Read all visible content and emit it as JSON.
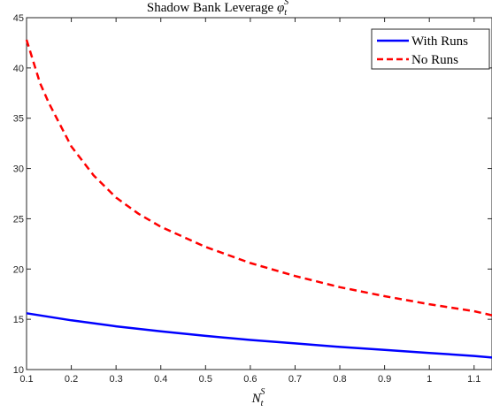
{
  "chart_data": {
    "type": "line",
    "title": "Shadow Bank Leverage",
    "title_math": {
      "base": "φ",
      "sub": "t",
      "sup": "S"
    },
    "xlabel_math": {
      "base": "N",
      "sub": "t",
      "sup": "S"
    },
    "ylabel": "",
    "xlim": [
      0.1,
      1.14
    ],
    "ylim": [
      10,
      45
    ],
    "xticks": [
      "0.1",
      "0.2",
      "0.3",
      "0.4",
      "0.5",
      "0.6",
      "0.7",
      "0.8",
      "0.9",
      "1",
      "1.1"
    ],
    "yticks": [
      "10",
      "15",
      "20",
      "25",
      "30",
      "35",
      "40",
      "45"
    ],
    "grid": false,
    "legend_position": "top-right",
    "series": [
      {
        "name": "With Runs",
        "color": "#0000ff",
        "style": "solid",
        "x": [
          0.1,
          0.2,
          0.3,
          0.4,
          0.5,
          0.6,
          0.7,
          0.8,
          0.9,
          1.0,
          1.1,
          1.14
        ],
        "y": [
          15.6,
          14.9,
          14.3,
          13.8,
          13.35,
          12.95,
          12.6,
          12.25,
          11.95,
          11.65,
          11.35,
          11.2
        ]
      },
      {
        "name": "No Runs",
        "color": "#ff0000",
        "style": "dashed",
        "x": [
          0.1,
          0.13,
          0.15,
          0.2,
          0.25,
          0.3,
          0.35,
          0.4,
          0.5,
          0.6,
          0.7,
          0.8,
          0.9,
          1.0,
          1.1,
          1.14
        ],
        "y": [
          42.8,
          38.5,
          36.5,
          32.2,
          29.3,
          27.1,
          25.5,
          24.2,
          22.2,
          20.6,
          19.3,
          18.2,
          17.3,
          16.5,
          15.8,
          15.4
        ]
      }
    ]
  }
}
